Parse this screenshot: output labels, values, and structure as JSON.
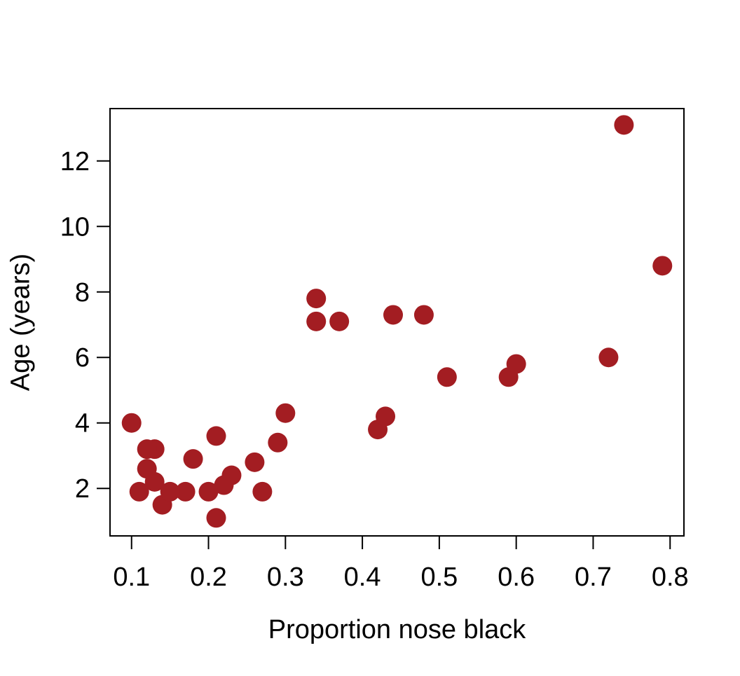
{
  "figure": {
    "background": "#ffffff",
    "axis_color": "#000000",
    "point_color": "#a31d22"
  },
  "chart_data": {
    "type": "scatter",
    "title": "",
    "xlabel": "Proportion nose black",
    "ylabel": "Age (years)",
    "x_ticks": [
      0.1,
      0.2,
      0.3,
      0.4,
      0.5,
      0.6,
      0.7,
      0.8
    ],
    "y_ticks": [
      2,
      4,
      6,
      8,
      10,
      12
    ],
    "xlim": [
      0.072,
      0.818
    ],
    "ylim": [
      0.55,
      13.6
    ],
    "grid": false,
    "legend": false,
    "point_radius_px": 14,
    "points": [
      {
        "x": 0.21,
        "y": 1.1
      },
      {
        "x": 0.14,
        "y": 1.5
      },
      {
        "x": 0.11,
        "y": 1.9
      },
      {
        "x": 0.13,
        "y": 2.2
      },
      {
        "x": 0.12,
        "y": 2.6
      },
      {
        "x": 0.13,
        "y": 3.2
      },
      {
        "x": 0.12,
        "y": 3.2
      },
      {
        "x": 0.18,
        "y": 2.9
      },
      {
        "x": 0.23,
        "y": 2.4
      },
      {
        "x": 0.22,
        "y": 2.1
      },
      {
        "x": 0.2,
        "y": 1.9
      },
      {
        "x": 0.17,
        "y": 1.9
      },
      {
        "x": 0.15,
        "y": 1.9
      },
      {
        "x": 0.27,
        "y": 1.9
      },
      {
        "x": 0.26,
        "y": 2.8
      },
      {
        "x": 0.21,
        "y": 3.6
      },
      {
        "x": 0.3,
        "y": 4.3
      },
      {
        "x": 0.42,
        "y": 3.8
      },
      {
        "x": 0.43,
        "y": 4.2
      },
      {
        "x": 0.59,
        "y": 5.4
      },
      {
        "x": 0.6,
        "y": 5.8
      },
      {
        "x": 0.72,
        "y": 6.0
      },
      {
        "x": 0.29,
        "y": 3.4
      },
      {
        "x": 0.1,
        "y": 4.0
      },
      {
        "x": 0.48,
        "y": 7.3
      },
      {
        "x": 0.44,
        "y": 7.3
      },
      {
        "x": 0.34,
        "y": 7.8
      },
      {
        "x": 0.37,
        "y": 7.1
      },
      {
        "x": 0.34,
        "y": 7.1
      },
      {
        "x": 0.74,
        "y": 13.1
      },
      {
        "x": 0.79,
        "y": 8.8
      },
      {
        "x": 0.51,
        "y": 5.4
      }
    ]
  }
}
